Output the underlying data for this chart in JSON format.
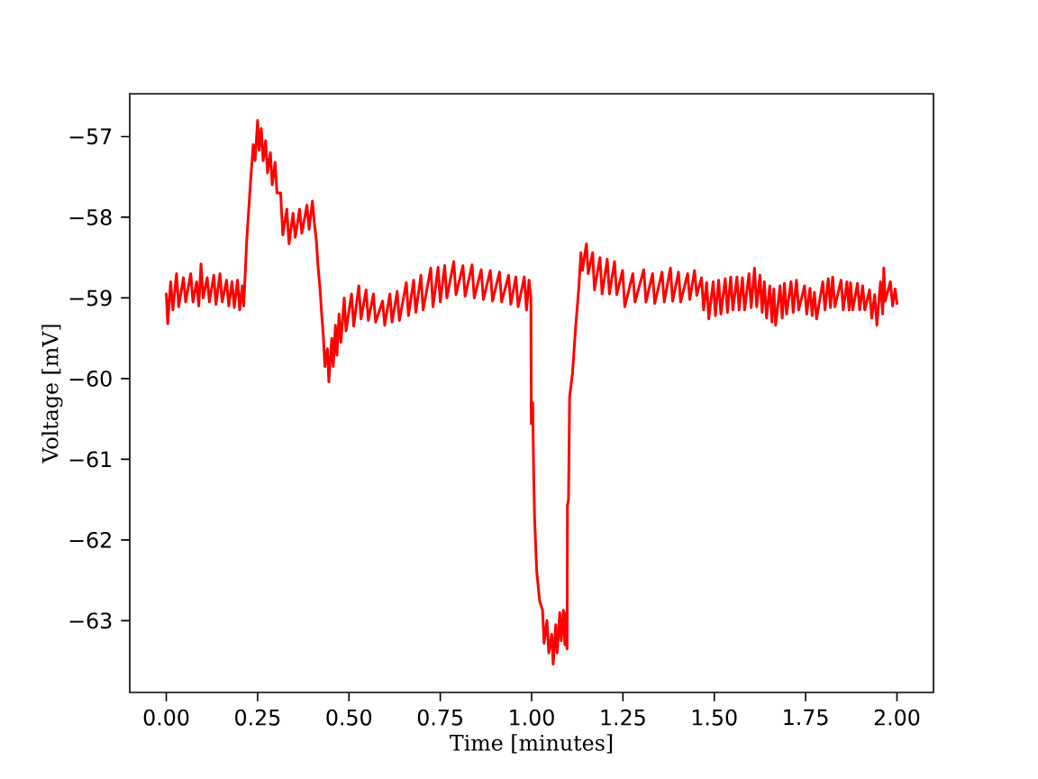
{
  "chart_data": {
    "type": "line",
    "xlabel": "Time [minutes]",
    "ylabel": "Voltage [mV]",
    "xlim": [
      -0.1,
      2.1
    ],
    "ylim": [
      -63.89,
      -56.47
    ],
    "xticks": [
      {
        "value": 0,
        "label": "0.00"
      },
      {
        "value": 0.25,
        "label": "0.25"
      },
      {
        "value": 0.5,
        "label": "0.50"
      },
      {
        "value": 0.75,
        "label": "0.75"
      },
      {
        "value": 1,
        "label": "1.00"
      },
      {
        "value": 1.25,
        "label": "1.25"
      },
      {
        "value": 1.5,
        "label": "1.50"
      },
      {
        "value": 1.75,
        "label": "1.75"
      },
      {
        "value": 2,
        "label": "2.00"
      }
    ],
    "yticks": [
      {
        "value": -63,
        "label": "−63"
      },
      {
        "value": -62,
        "label": "−62"
      },
      {
        "value": -61,
        "label": "−61"
      },
      {
        "value": -60,
        "label": "−60"
      },
      {
        "value": -59,
        "label": "−59"
      },
      {
        "value": -58,
        "label": "−58"
      },
      {
        "value": -57,
        "label": "−57"
      }
    ],
    "x": [
      0,
      0.004,
      0.012,
      0.018,
      0.028,
      0.034,
      0.047,
      0.053,
      0.067,
      0.073,
      0.083,
      0.089,
      0.095,
      0.101,
      0.112,
      0.118,
      0.13,
      0.136,
      0.147,
      0.153,
      0.165,
      0.171,
      0.18,
      0.186,
      0.195,
      0.201,
      0.208,
      0.212,
      0.22,
      0.23,
      0.238,
      0.243,
      0.25,
      0.254,
      0.26,
      0.265,
      0.272,
      0.277,
      0.285,
      0.29,
      0.298,
      0.303,
      0.313,
      0.319,
      0.33,
      0.336,
      0.347,
      0.353,
      0.365,
      0.371,
      0.385,
      0.391,
      0.4,
      0.406,
      0.411,
      0.415,
      0.421,
      0.425,
      0.43,
      0.434,
      0.441,
      0.445,
      0.453,
      0.457,
      0.463,
      0.467,
      0.473,
      0.478,
      0.487,
      0.492,
      0.507,
      0.513,
      0.527,
      0.533,
      0.547,
      0.553,
      0.567,
      0.573,
      0.592,
      0.598,
      0.612,
      0.618,
      0.632,
      0.638,
      0.657,
      0.663,
      0.677,
      0.683,
      0.697,
      0.703,
      0.724,
      0.73,
      0.744,
      0.75,
      0.762,
      0.768,
      0.787,
      0.793,
      0.812,
      0.818,
      0.837,
      0.843,
      0.862,
      0.868,
      0.887,
      0.893,
      0.912,
      0.918,
      0.937,
      0.943,
      0.957,
      0.963,
      0.98,
      0.986,
      0.993,
      0.998,
      0.999,
      1.003,
      1.005,
      1.008,
      1.014,
      1.022,
      1.03,
      1.034,
      1.042,
      1.047,
      1.055,
      1.059,
      1.066,
      1.07,
      1.077,
      1.081,
      1.087,
      1.091,
      1.095,
      1.097,
      1.098,
      1.101,
      1.104,
      1.112,
      1.121,
      1.129,
      1.135,
      1.139,
      1.15,
      1.155,
      1.167,
      1.172,
      1.187,
      1.193,
      1.207,
      1.213,
      1.227,
      1.233,
      1.249,
      1.255,
      1.277,
      1.283,
      1.307,
      1.313,
      1.331,
      1.337,
      1.357,
      1.363,
      1.38,
      1.386,
      1.402,
      1.408,
      1.427,
      1.433,
      1.446,
      1.452,
      1.465,
      1.471,
      1.479,
      1.485,
      1.497,
      1.503,
      1.512,
      1.518,
      1.53,
      1.536,
      1.545,
      1.551,
      1.562,
      1.568,
      1.577,
      1.583,
      1.595,
      1.601,
      1.61,
      1.616,
      1.625,
      1.631,
      1.637,
      1.643,
      1.652,
      1.658,
      1.663,
      1.668,
      1.68,
      1.686,
      1.692,
      1.698,
      1.71,
      1.716,
      1.725,
      1.731,
      1.747,
      1.753,
      1.762,
      1.768,
      1.774,
      1.78,
      1.797,
      1.803,
      1.812,
      1.818,
      1.824,
      1.83,
      1.847,
      1.853,
      1.863,
      1.869,
      1.873,
      1.879,
      1.892,
      1.898,
      1.906,
      1.912,
      1.925,
      1.931,
      1.939,
      1.945,
      1.955,
      1.961,
      1.964,
      1.968,
      1.982,
      1.988,
      1.995,
      2.0
    ],
    "series": [
      {
        "color": "#ff0000",
        "values": [
          -58.95,
          -59.32,
          -58.8,
          -59.15,
          -58.7,
          -59.11,
          -58.75,
          -59.05,
          -58.7,
          -59.05,
          -58.8,
          -59.1,
          -58.58,
          -59.0,
          -58.75,
          -59.05,
          -58.72,
          -59.08,
          -58.7,
          -59.05,
          -58.78,
          -59.1,
          -58.8,
          -59.12,
          -58.78,
          -59.15,
          -58.85,
          -59.1,
          -58.3,
          -57.6,
          -57.1,
          -57.3,
          -56.8,
          -57.17,
          -56.9,
          -57.3,
          -57.05,
          -57.45,
          -57.2,
          -57.6,
          -57.32,
          -57.7,
          -57.7,
          -58.22,
          -57.9,
          -58.33,
          -57.95,
          -58.25,
          -57.9,
          -58.2,
          -57.85,
          -58.15,
          -57.8,
          -58.1,
          -58.3,
          -58.59,
          -58.9,
          -59.18,
          -59.48,
          -59.85,
          -59.63,
          -60.04,
          -59.5,
          -59.85,
          -59.34,
          -59.71,
          -59.2,
          -59.55,
          -59.0,
          -59.41,
          -58.95,
          -59.35,
          -58.85,
          -59.26,
          -58.9,
          -59.28,
          -58.95,
          -59.3,
          -59.04,
          -59.34,
          -58.95,
          -59.3,
          -58.92,
          -59.28,
          -58.81,
          -59.22,
          -58.78,
          -59.18,
          -58.72,
          -59.15,
          -58.63,
          -59.11,
          -58.62,
          -59.05,
          -58.6,
          -59.0,
          -58.55,
          -58.96,
          -58.6,
          -58.98,
          -58.59,
          -59.0,
          -58.65,
          -59.02,
          -58.66,
          -59.04,
          -58.68,
          -59.05,
          -58.72,
          -59.08,
          -58.74,
          -59.11,
          -58.74,
          -59.15,
          -58.78,
          -59.0,
          -60.56,
          -60.3,
          -61.0,
          -61.72,
          -62.39,
          -62.76,
          -62.87,
          -63.28,
          -63.0,
          -63.4,
          -63.17,
          -63.54,
          -63.05,
          -63.4,
          -62.9,
          -63.25,
          -62.87,
          -63.3,
          -62.9,
          -63.35,
          -61.57,
          -61.5,
          -60.23,
          -59.93,
          -59.33,
          -58.89,
          -58.44,
          -58.66,
          -58.33,
          -58.7,
          -58.44,
          -58.9,
          -58.5,
          -58.95,
          -58.52,
          -58.95,
          -58.55,
          -58.96,
          -58.66,
          -59.11,
          -58.7,
          -59.05,
          -58.65,
          -59.05,
          -58.7,
          -59.07,
          -58.68,
          -59.05,
          -58.63,
          -59.04,
          -58.68,
          -59.05,
          -58.7,
          -59.02,
          -58.66,
          -58.97,
          -58.75,
          -59.15,
          -58.81,
          -59.26,
          -58.8,
          -59.22,
          -58.78,
          -59.2,
          -58.76,
          -59.18,
          -58.74,
          -59.15,
          -58.74,
          -59.15,
          -58.75,
          -59.15,
          -58.7,
          -59.12,
          -58.63,
          -59.11,
          -58.72,
          -59.18,
          -58.8,
          -59.25,
          -58.85,
          -59.3,
          -58.89,
          -59.34,
          -58.85,
          -59.25,
          -58.82,
          -59.2,
          -58.8,
          -59.18,
          -58.78,
          -59.15,
          -58.85,
          -59.2,
          -58.88,
          -59.22,
          -58.93,
          -59.26,
          -58.8,
          -59.15,
          -58.76,
          -59.12,
          -58.74,
          -59.11,
          -58.78,
          -59.15,
          -58.8,
          -59.15,
          -58.81,
          -59.15,
          -58.82,
          -59.15,
          -58.85,
          -59.15,
          -58.9,
          -59.25,
          -58.96,
          -59.34,
          -58.8,
          -59.2,
          -58.63,
          -59.04,
          -58.8,
          -59.1,
          -58.89,
          -59.07
        ]
      }
    ]
  }
}
